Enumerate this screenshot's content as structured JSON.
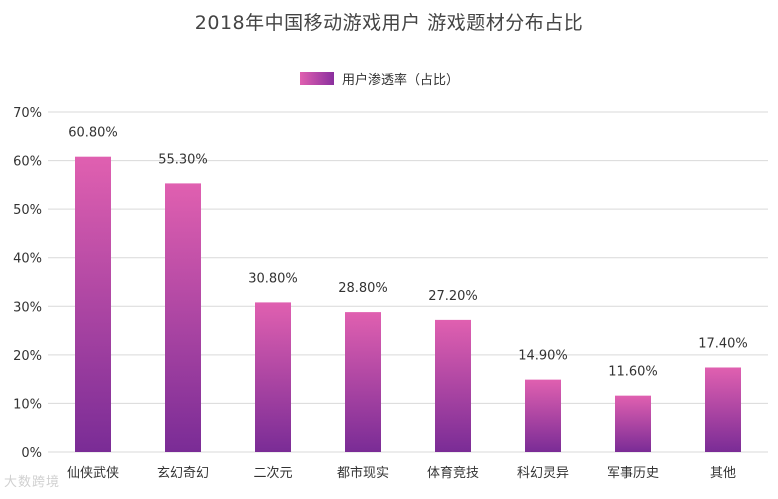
{
  "chart_data": {
    "type": "bar",
    "title": "2018年中国移动游戏用户 游戏题材分布占比",
    "legend": [
      "用户渗透率（占比）"
    ],
    "legend_position": "top-center",
    "categories": [
      "仙侠武侠",
      "玄幻奇幻",
      "二次元",
      "都市现实",
      "体育竞技",
      "科幻灵异",
      "军事历史",
      "其他"
    ],
    "series": [
      {
        "name": "用户渗透率（占比）",
        "values": [
          60.8,
          55.3,
          30.8,
          28.8,
          27.2,
          14.9,
          11.6,
          17.4
        ]
      }
    ],
    "data_labels": [
      "60.80%",
      "55.30%",
      "30.80%",
      "28.80%",
      "27.20%",
      "14.90%",
      "11.60%",
      "17.40%"
    ],
    "y_ticks": [
      "0%",
      "10%",
      "20%",
      "30%",
      "40%",
      "50%",
      "60%",
      "70%"
    ],
    "ylim": [
      0,
      70
    ],
    "xlabel": "",
    "ylabel": "",
    "grid": true,
    "colors": {
      "bar_top": "#e060b0",
      "bar_bottom": "#7a2c96",
      "grid": "#d9d9d9",
      "axis_text": "#333333"
    }
  },
  "watermark": "大数跨境"
}
